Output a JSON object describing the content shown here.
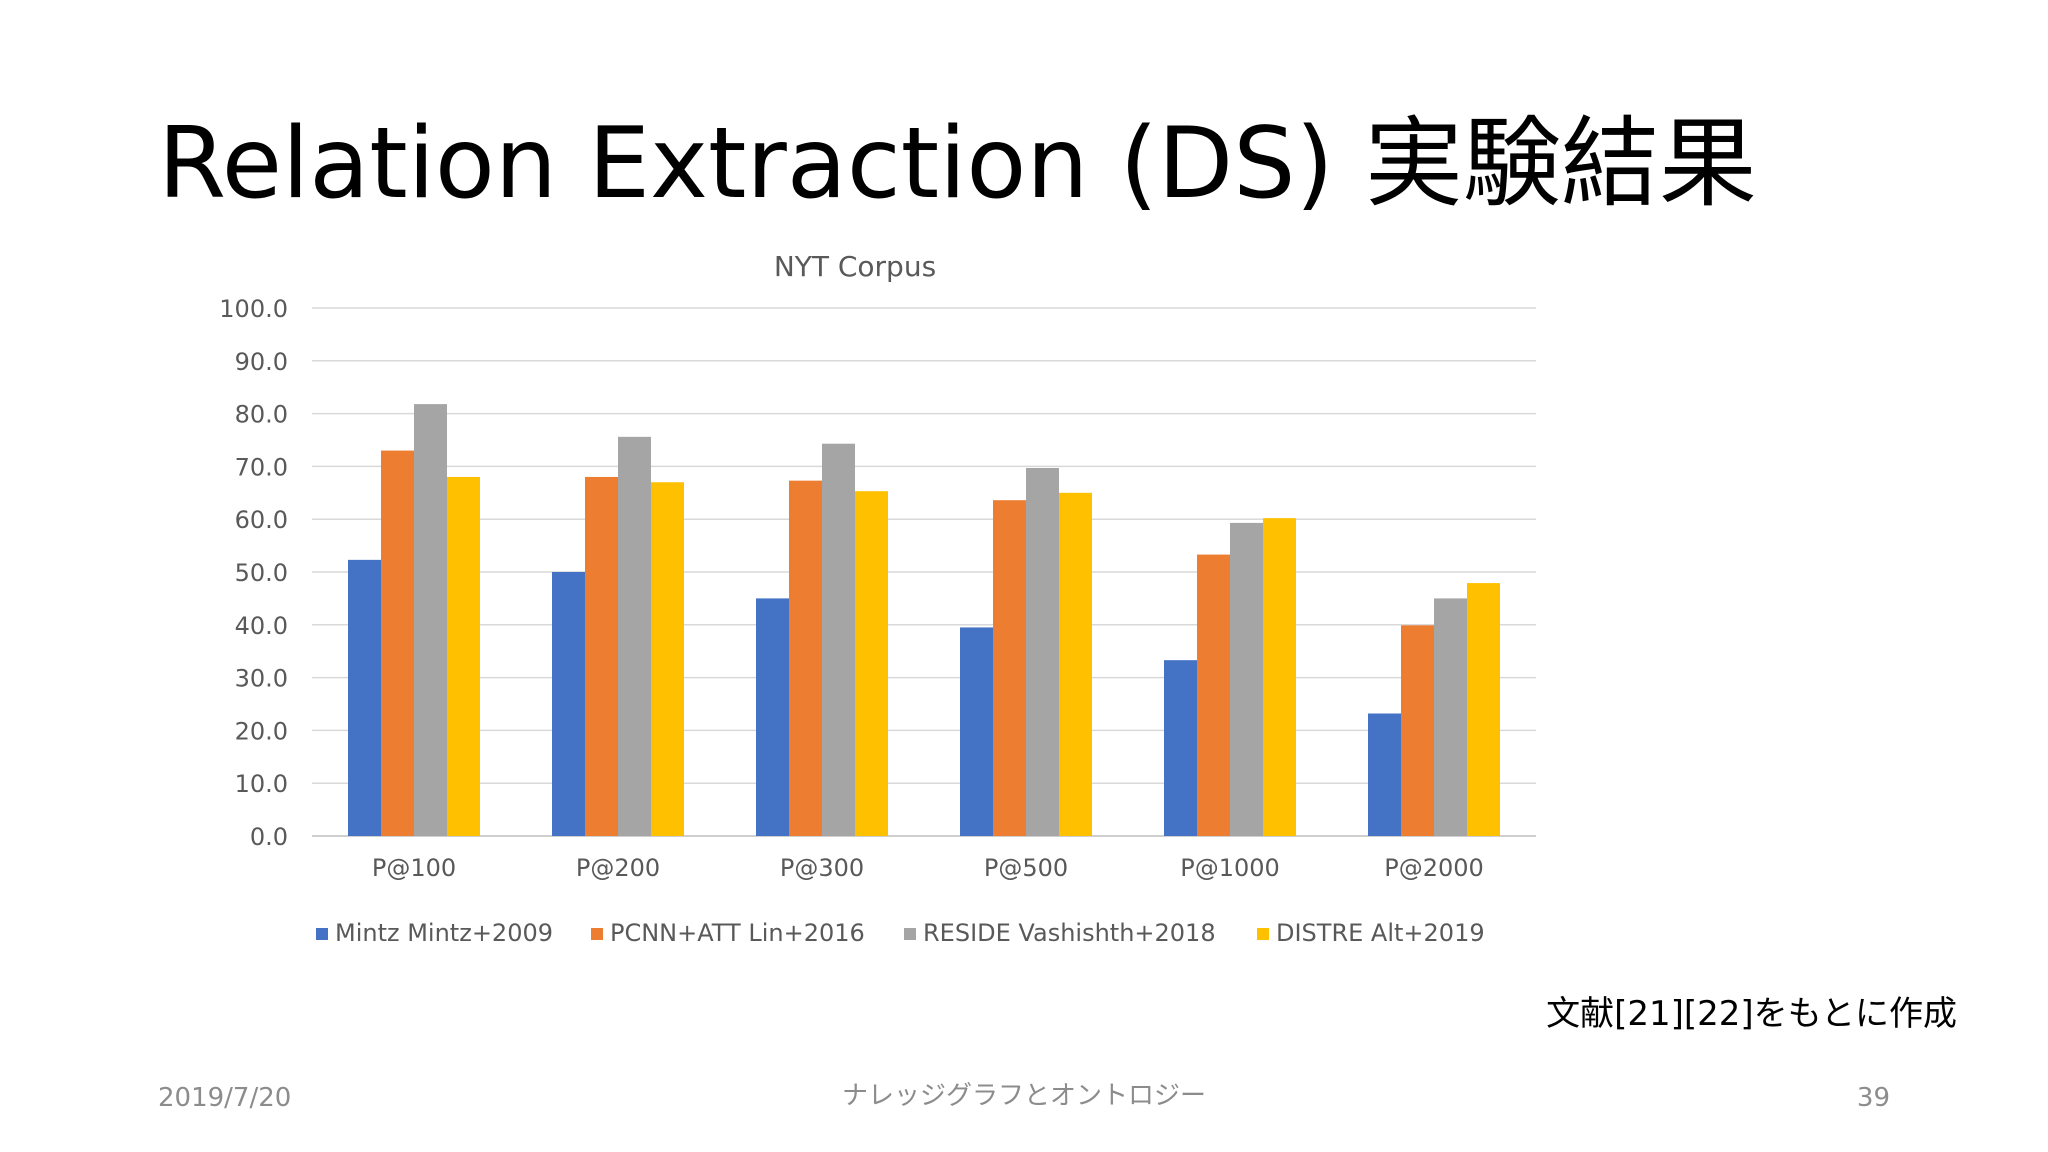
{
  "slide": {
    "title": "Relation Extraction (DS) 実験結果",
    "source_note": "文献[21][22]をもとに作成",
    "footer_date": "2019/7/20",
    "footer_center": "ナレッジグラフとオントロジー",
    "page_number": "39"
  },
  "chart_data": {
    "type": "bar",
    "title": "NYT Corpus",
    "xlabel": "",
    "ylabel": "",
    "categories": [
      "P@100",
      "P@200",
      "P@300",
      "P@500",
      "P@1000",
      "P@2000"
    ],
    "series": [
      {
        "name": "Mintz Mintz+2009",
        "color": "#4472c4",
        "values": [
          52.3,
          50.0,
          45.0,
          39.5,
          33.3,
          23.2
        ]
      },
      {
        "name": "PCNN+ATT Lin+2016",
        "color": "#ed7d31",
        "values": [
          73.0,
          68.0,
          67.3,
          63.6,
          53.3,
          39.9
        ]
      },
      {
        "name": "RESIDE Vashishth+2018",
        "color": "#a5a5a5",
        "values": [
          81.8,
          75.6,
          74.3,
          69.7,
          59.3,
          45.0
        ]
      },
      {
        "name": "DISTRE Alt+2019",
        "color": "#ffc000",
        "values": [
          68.0,
          67.0,
          65.3,
          65.0,
          60.2,
          47.9
        ]
      }
    ],
    "ylim": [
      0,
      100
    ],
    "yticks": [
      "0.0",
      "10.0",
      "20.0",
      "30.0",
      "40.0",
      "50.0",
      "60.0",
      "70.0",
      "80.0",
      "90.0",
      "100.0"
    ],
    "grid": true,
    "legend_position": "bottom"
  }
}
